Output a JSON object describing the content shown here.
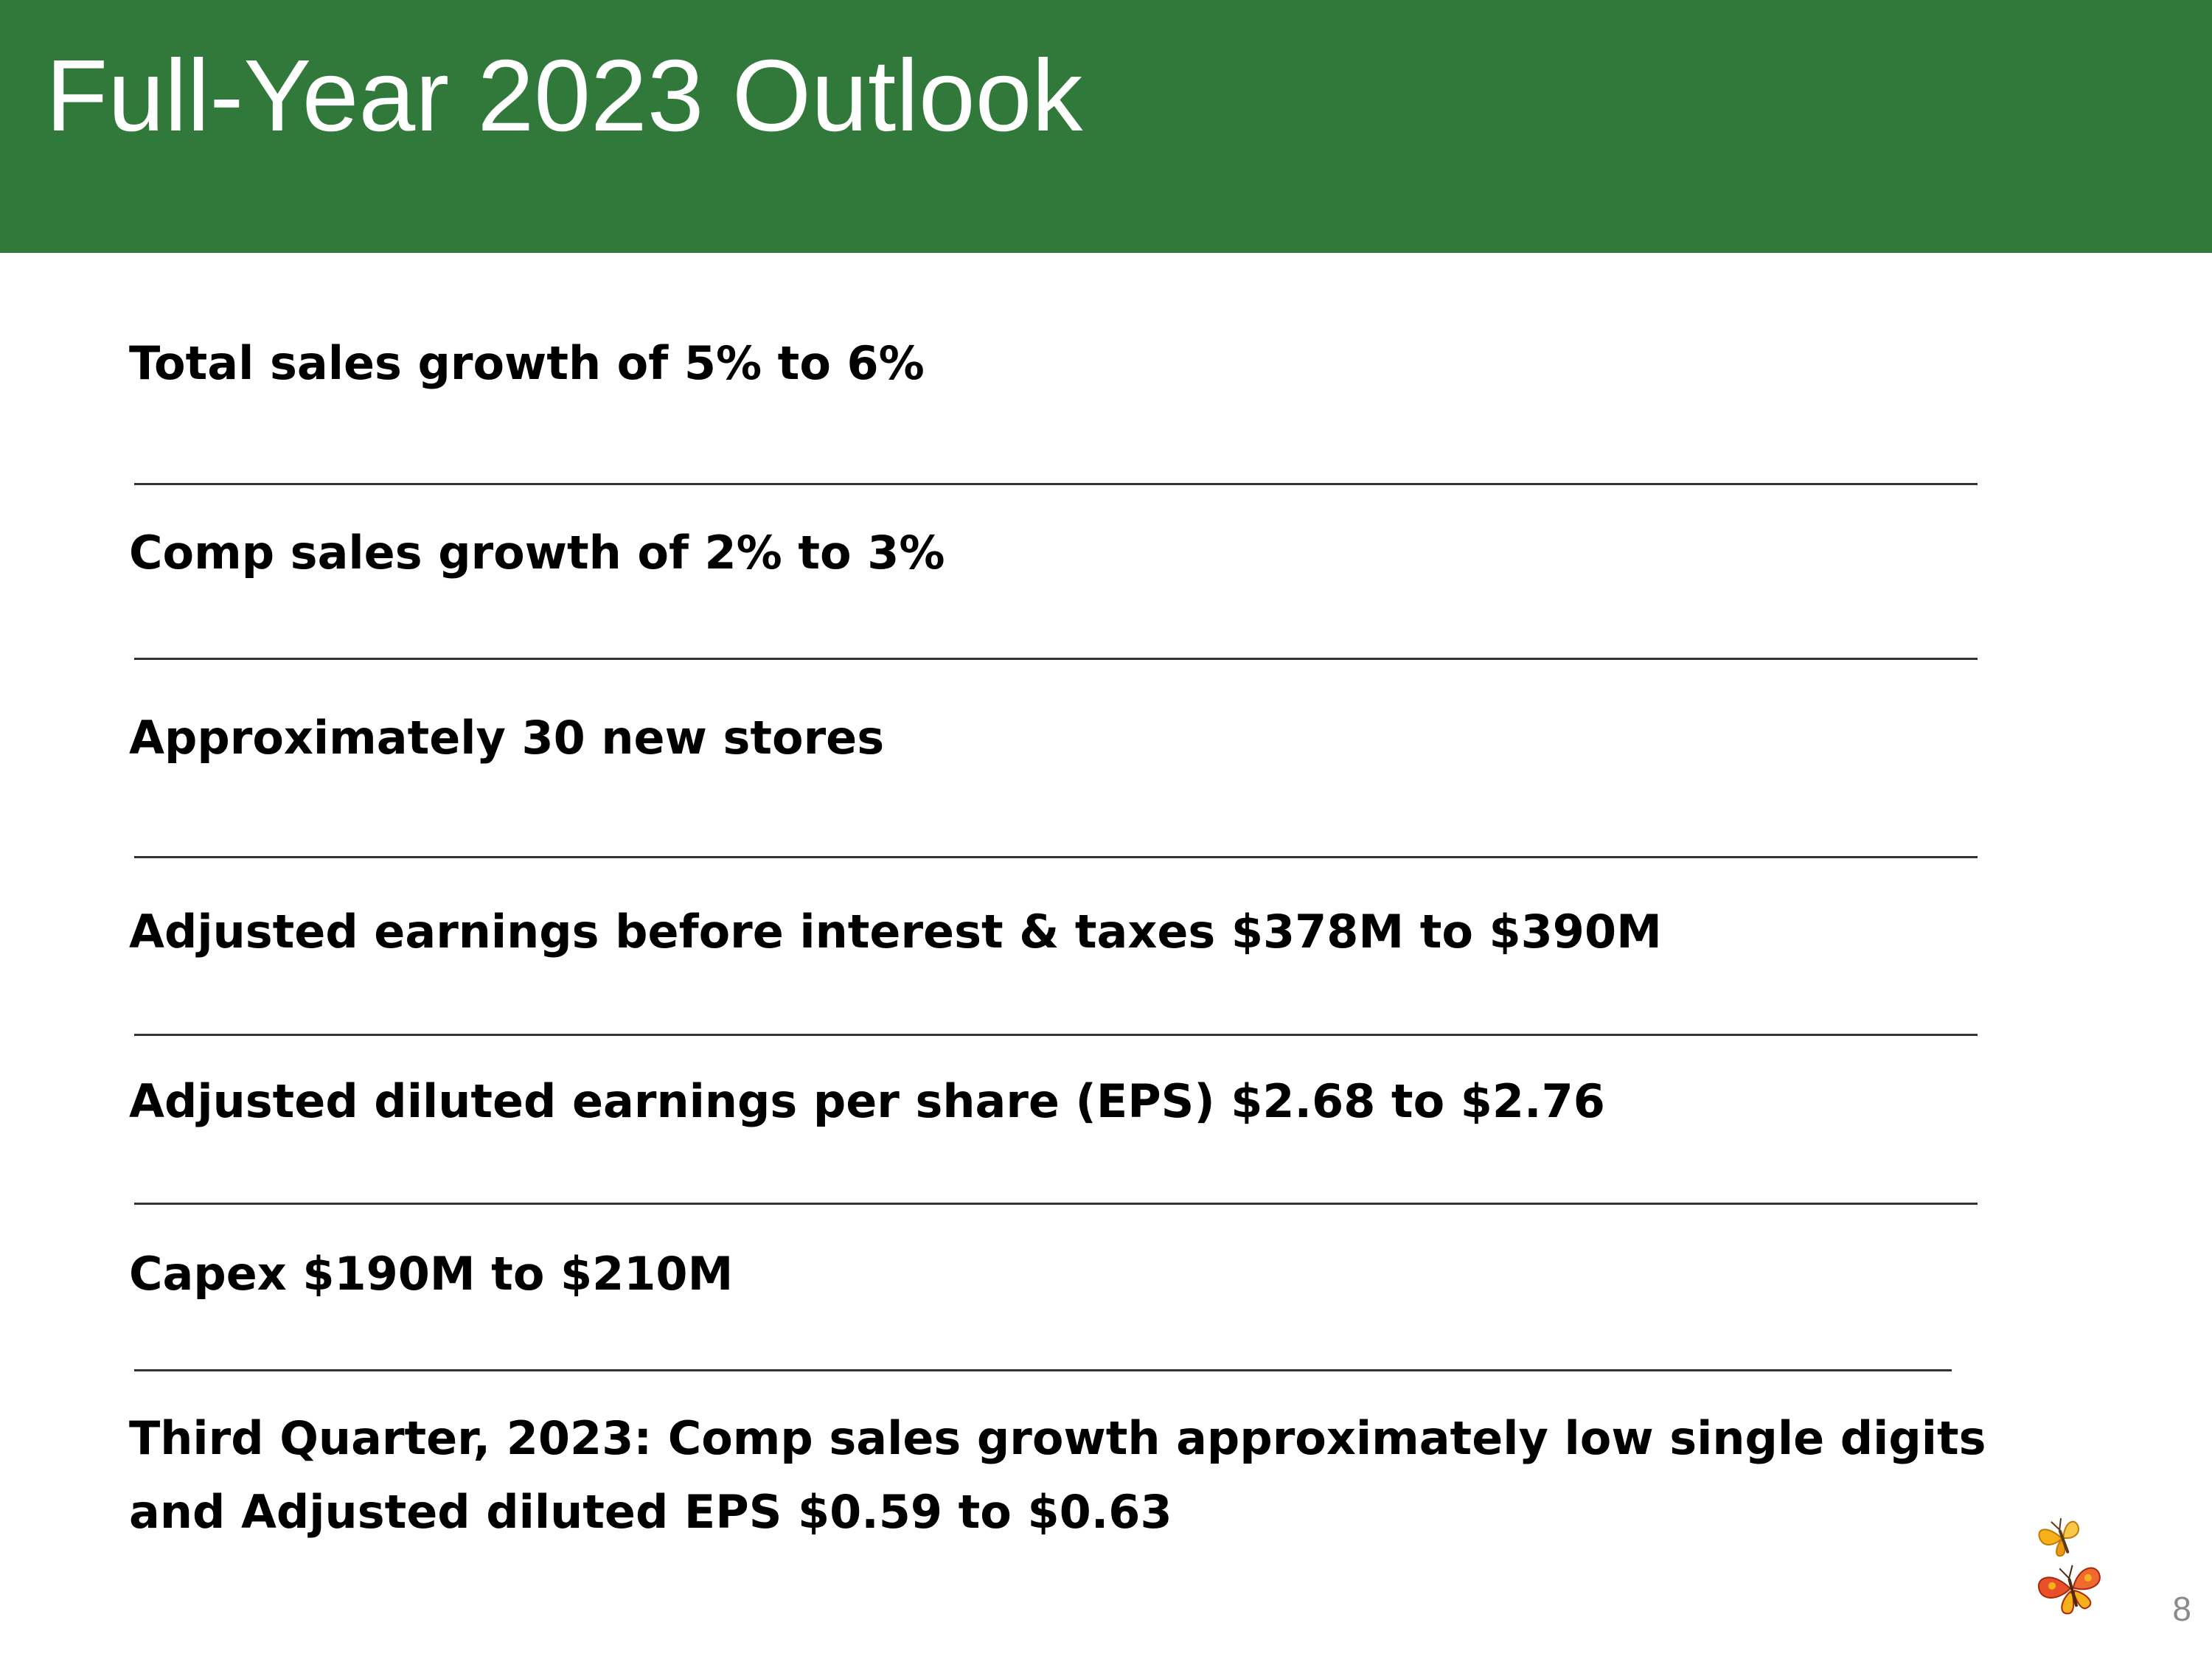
{
  "slide": {
    "title": "Full-Year 2023 Outlook",
    "page_number": "8"
  },
  "outlook_items": [
    {
      "text": "Total sales growth of 5% to 6%"
    },
    {
      "text": "Comp sales growth of 2% to 3%"
    },
    {
      "text": "Approximately 30 new stores"
    },
    {
      "text": "Adjusted earnings before interest & taxes $378M to $390M"
    },
    {
      "text": "Adjusted diluted earnings per share (EPS) $2.68 to $2.76"
    },
    {
      "text": "Capex $190M to $210M"
    },
    {
      "text_line1": "Third Quarter, 2023: Comp sales growth approximately low single digits",
      "text_line2": "and Adjusted diluted EPS $0.59 to $0.63"
    }
  ],
  "colors": {
    "header_green": "#31793b",
    "title_text": "#ffffff",
    "body_text": "#000000",
    "butterfly_orange": "#e8502a",
    "butterfly_yellow": "#f5b01a"
  },
  "icons": [
    "red-butterfly-icon",
    "yellow-butterfly-icon"
  ]
}
